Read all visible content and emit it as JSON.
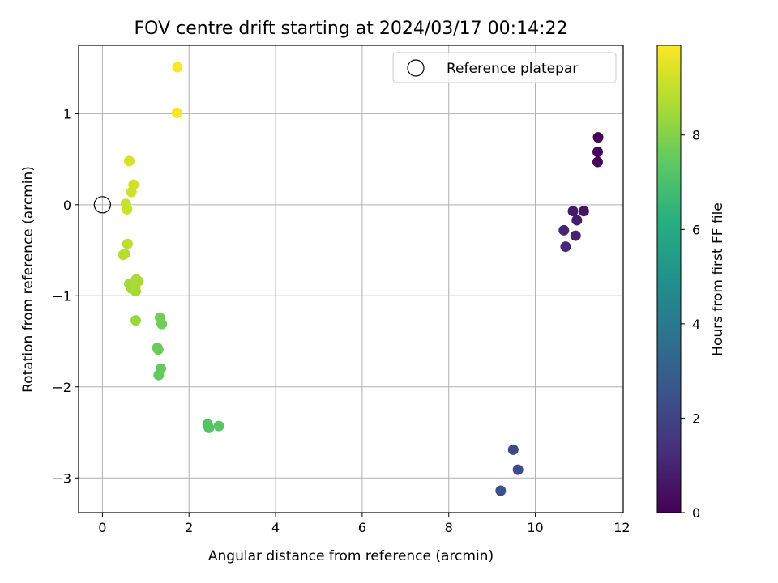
{
  "chart_data": {
    "type": "scatter",
    "title": "FOV centre drift starting at 2024/03/17 00:14:22",
    "xlabel": "Angular distance from reference (arcmin)",
    "ylabel": "Rotation from reference (arcmin)",
    "xlim": [
      -0.55,
      12.03
    ],
    "ylim": [
      -3.38,
      1.75
    ],
    "xticks": [
      0,
      2,
      4,
      6,
      8,
      10,
      12
    ],
    "yticks": [
      -3,
      -2,
      -1,
      0,
      1
    ],
    "ytick_labels": [
      "−3",
      "−2",
      "−1",
      "0",
      "1"
    ],
    "grid": true,
    "legend": {
      "placement": "top-right",
      "entries": [
        "Reference platepar"
      ]
    },
    "reference_point": {
      "x": 0,
      "y": 0,
      "label": "Reference platepar"
    },
    "colorbar": {
      "label": "Hours from first FF file",
      "range": [
        0,
        9.9
      ],
      "ticks": [
        0,
        2,
        4,
        6,
        8
      ],
      "colormap": "viridis"
    },
    "points": [
      {
        "x": 11.45,
        "y": 0.74,
        "hours": 0.1
      },
      {
        "x": 11.44,
        "y": 0.58,
        "hours": 0.15
      },
      {
        "x": 11.44,
        "y": 0.47,
        "hours": 0.2
      },
      {
        "x": 10.87,
        "y": -0.07,
        "hours": 0.7
      },
      {
        "x": 11.12,
        "y": -0.07,
        "hours": 0.5
      },
      {
        "x": 10.96,
        "y": -0.17,
        "hours": 0.8
      },
      {
        "x": 10.66,
        "y": -0.28,
        "hours": 1.0
      },
      {
        "x": 10.93,
        "y": -0.34,
        "hours": 0.9
      },
      {
        "x": 10.7,
        "y": -0.46,
        "hours": 1.1
      },
      {
        "x": 9.49,
        "y": -2.69,
        "hours": 2.2
      },
      {
        "x": 9.6,
        "y": -2.91,
        "hours": 2.3
      },
      {
        "x": 9.2,
        "y": -3.14,
        "hours": 2.4
      },
      {
        "x": 2.43,
        "y": -2.41,
        "hours": 7.2
      },
      {
        "x": 2.46,
        "y": -2.45,
        "hours": 7.2
      },
      {
        "x": 2.69,
        "y": -2.43,
        "hours": 7.3
      },
      {
        "x": 1.3,
        "y": -1.87,
        "hours": 7.5
      },
      {
        "x": 1.35,
        "y": -1.8,
        "hours": 7.5
      },
      {
        "x": 1.27,
        "y": -1.57,
        "hours": 7.6
      },
      {
        "x": 1.29,
        "y": -1.59,
        "hours": 7.6
      },
      {
        "x": 1.33,
        "y": -1.24,
        "hours": 7.7
      },
      {
        "x": 1.37,
        "y": -1.31,
        "hours": 7.7
      },
      {
        "x": 0.77,
        "y": -1.27,
        "hours": 8.3
      },
      {
        "x": 0.62,
        "y": -0.87,
        "hours": 8.5
      },
      {
        "x": 0.67,
        "y": -0.92,
        "hours": 8.5
      },
      {
        "x": 0.72,
        "y": -0.88,
        "hours": 8.5
      },
      {
        "x": 0.77,
        "y": -0.95,
        "hours": 8.5
      },
      {
        "x": 0.78,
        "y": -0.82,
        "hours": 8.6
      },
      {
        "x": 0.83,
        "y": -0.84,
        "hours": 8.6
      },
      {
        "x": 0.76,
        "y": -0.9,
        "hours": 8.6
      },
      {
        "x": 0.48,
        "y": -0.55,
        "hours": 8.8
      },
      {
        "x": 0.52,
        "y": -0.54,
        "hours": 8.8
      },
      {
        "x": 0.58,
        "y": -0.43,
        "hours": 8.9
      },
      {
        "x": 0.54,
        "y": 0.01,
        "hours": 9.1
      },
      {
        "x": 0.57,
        "y": -0.05,
        "hours": 9.1
      },
      {
        "x": 0.67,
        "y": 0.14,
        "hours": 9.2
      },
      {
        "x": 0.72,
        "y": 0.22,
        "hours": 9.2
      },
      {
        "x": 0.62,
        "y": 0.48,
        "hours": 9.3
      },
      {
        "x": 1.72,
        "y": 1.01,
        "hours": 9.8
      },
      {
        "x": 1.73,
        "y": 1.51,
        "hours": 9.9
      }
    ]
  }
}
